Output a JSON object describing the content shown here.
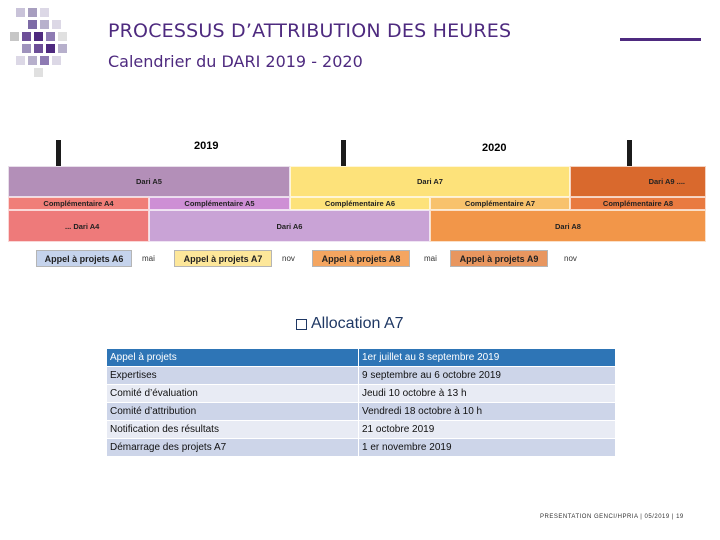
{
  "header": {
    "title": "PROCESSUS D’ATTRIBUTION DES HEURES",
    "subtitle": "Calendrier du DARI 2019 - 2020"
  },
  "timeline": {
    "years": [
      "2019",
      "2020"
    ],
    "row1": [
      "Dari A5",
      "Dari A7",
      "Dari A9 ...."
    ],
    "row2": [
      "Complémentaire A4",
      "Complémentaire A5",
      "Complémentaire A6",
      "Complémentaire A7",
      "Complémentaire A8"
    ],
    "row3": [
      "... Dari A4",
      "Dari A6",
      "Dari A8"
    ],
    "calls": [
      "Appel à projets A6",
      "Appel à projets A7",
      "Appel à projets A8",
      "Appel à projets A9"
    ],
    "months": [
      "mai",
      "nov",
      "mai",
      "nov"
    ]
  },
  "allocation": {
    "title": "Allocation A7",
    "rows": [
      {
        "step": "Appel à projets",
        "date": "1er juillet au 8 septembre 2019"
      },
      {
        "step": "Expertises",
        "date": "9 septembre au 6 octobre 2019"
      },
      {
        "step": "Comité d’évaluation",
        "date": "Jeudi 10 octobre à 13 h"
      },
      {
        "step": "Comité d’attribution",
        "date": "Vendredi 18 octobre à 10 h"
      },
      {
        "step": "Notification des résultats",
        "date": "21 octobre 2019"
      },
      {
        "step": "Démarrage des projets A7",
        "date": "1 er novembre 2019"
      }
    ]
  },
  "footer": {
    "text": "PRESENTATION GENCI/HPRIA  |  05/2019  |  19"
  },
  "colors": {
    "brand": "#4e2a7f",
    "dari_a5": "#b38fb8",
    "dari_a7": "#fde27a",
    "dari_a9": "#d9692d",
    "comp_a4": "#f07e78",
    "comp_a5": "#ce8fd5",
    "comp_a6": "#fde27a",
    "comp_a7": "#f8c26c",
    "comp_a8": "#e97a40",
    "dari_a4": "#ee7a7a",
    "dari_a6": "#c9a3d6",
    "dari_a8": "#f29649"
  }
}
